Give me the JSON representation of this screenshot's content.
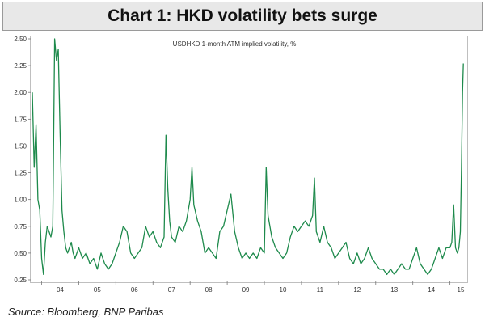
{
  "chart_title": "Chart 1: HKD volatility bets surge",
  "source": "Source: Bloomberg, BNP Paribas",
  "colors": {
    "series": "#1e8a4c",
    "frame": "#bfbfbf",
    "title_bg": "#e8e8e8"
  },
  "chart_data": {
    "type": "line",
    "title": "Chart 1: HKD volatility bets surge",
    "subtitle": "USDHKD 1-month ATM implied volatility, %",
    "xlabel": "",
    "ylabel": "",
    "ylim": [
      0.25,
      2.5
    ],
    "xlim": [
      2003.75,
      2015.4
    ],
    "y_ticks": [
      "0.25",
      "0.50",
      "0.75",
      "1.00",
      "1.25",
      "1.50",
      "1.75",
      "2.00",
      "2.25",
      "2.50"
    ],
    "x_ticks": [
      "04",
      "05",
      "06",
      "07",
      "08",
      "09",
      "10",
      "11",
      "12",
      "13",
      "14",
      "15"
    ],
    "grid": false,
    "legend": "none",
    "series": [
      {
        "x": [
          2003.75,
          2003.8,
          2003.85,
          2003.9,
          2003.95,
          2004.0,
          2004.05,
          2004.1,
          2004.15,
          2004.2,
          2004.25,
          2004.3,
          2004.35,
          2004.4,
          2004.45,
          2004.5,
          2004.55,
          2004.6,
          2004.65,
          2004.7,
          2004.75,
          2004.8,
          2004.85,
          2004.9,
          2004.95,
          2005.0,
          2005.1,
          2005.2,
          2005.3,
          2005.4,
          2005.5,
          2005.6,
          2005.7,
          2005.8,
          2005.9,
          2006.0,
          2006.1,
          2006.2,
          2006.3,
          2006.4,
          2006.5,
          2006.6,
          2006.7,
          2006.8,
          2006.9,
          2007.0,
          2007.1,
          2007.2,
          2007.3,
          2007.35,
          2007.4,
          2007.45,
          2007.5,
          2007.6,
          2007.7,
          2007.8,
          2007.9,
          2008.0,
          2008.05,
          2008.1,
          2008.2,
          2008.3,
          2008.4,
          2008.5,
          2008.6,
          2008.7,
          2008.8,
          2008.9,
          2009.0,
          2009.1,
          2009.2,
          2009.3,
          2009.4,
          2009.5,
          2009.6,
          2009.7,
          2009.8,
          2009.9,
          2010.0,
          2010.05,
          2010.1,
          2010.2,
          2010.3,
          2010.4,
          2010.5,
          2010.6,
          2010.7,
          2010.8,
          2010.9,
          2011.0,
          2011.1,
          2011.2,
          2011.3,
          2011.35,
          2011.4,
          2011.5,
          2011.6,
          2011.7,
          2011.8,
          2011.9,
          2012.0,
          2012.1,
          2012.2,
          2012.3,
          2012.4,
          2012.5,
          2012.6,
          2012.7,
          2012.8,
          2012.9,
          2013.0,
          2013.1,
          2013.2,
          2013.3,
          2013.4,
          2013.5,
          2013.6,
          2013.7,
          2013.8,
          2013.9,
          2014.0,
          2014.1,
          2014.2,
          2014.3,
          2014.4,
          2014.5,
          2014.6,
          2014.7,
          2014.8,
          2014.9,
          2015.0,
          2015.05,
          2015.1,
          2015.15,
          2015.2,
          2015.24,
          2015.28,
          2015.31,
          2015.34,
          2015.36
        ],
        "values": [
          2.0,
          1.3,
          1.7,
          1.0,
          0.9,
          0.45,
          0.3,
          0.6,
          0.75,
          0.7,
          0.65,
          0.75,
          2.5,
          2.3,
          2.4,
          1.6,
          0.9,
          0.7,
          0.55,
          0.5,
          0.55,
          0.6,
          0.5,
          0.45,
          0.5,
          0.55,
          0.45,
          0.5,
          0.4,
          0.45,
          0.35,
          0.5,
          0.4,
          0.35,
          0.4,
          0.5,
          0.6,
          0.75,
          0.7,
          0.5,
          0.45,
          0.5,
          0.55,
          0.75,
          0.65,
          0.7,
          0.6,
          0.55,
          0.65,
          1.6,
          1.1,
          0.8,
          0.65,
          0.6,
          0.75,
          0.7,
          0.8,
          1.0,
          1.3,
          0.95,
          0.8,
          0.7,
          0.5,
          0.55,
          0.5,
          0.45,
          0.7,
          0.75,
          0.9,
          1.05,
          0.7,
          0.55,
          0.45,
          0.5,
          0.45,
          0.5,
          0.45,
          0.55,
          0.5,
          1.3,
          0.85,
          0.65,
          0.55,
          0.5,
          0.45,
          0.5,
          0.65,
          0.75,
          0.7,
          0.75,
          0.8,
          0.75,
          0.85,
          1.2,
          0.7,
          0.6,
          0.75,
          0.6,
          0.55,
          0.45,
          0.5,
          0.55,
          0.6,
          0.45,
          0.4,
          0.5,
          0.4,
          0.45,
          0.55,
          0.45,
          0.4,
          0.35,
          0.35,
          0.3,
          0.35,
          0.3,
          0.35,
          0.4,
          0.35,
          0.35,
          0.45,
          0.55,
          0.4,
          0.35,
          0.3,
          0.35,
          0.45,
          0.55,
          0.45,
          0.55,
          0.55,
          0.6,
          0.95,
          0.55,
          0.5,
          0.55,
          0.7,
          1.3,
          2.0,
          2.27
        ]
      }
    ]
  }
}
